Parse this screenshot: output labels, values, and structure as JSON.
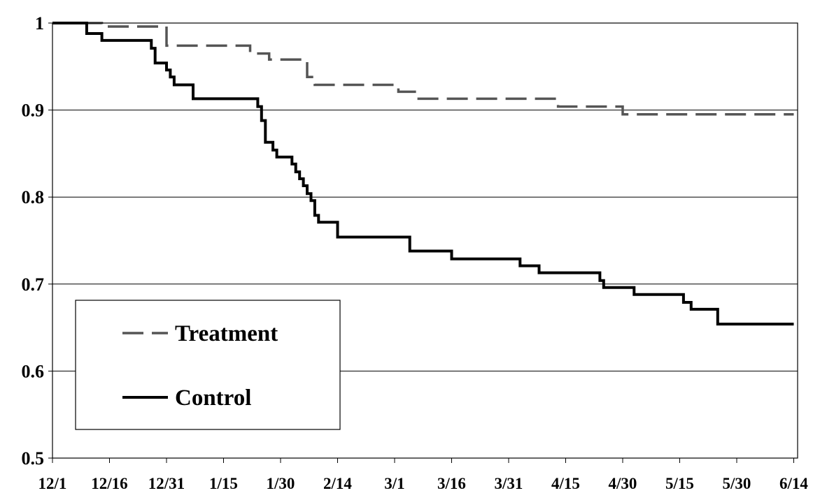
{
  "chart_data": {
    "type": "line",
    "title": "",
    "xlabel": "",
    "ylabel": "",
    "ylim": [
      0.5,
      1.0
    ],
    "y_ticks": [
      "0.5",
      "0.6",
      "0.7",
      "0.8",
      "0.9",
      "1"
    ],
    "x_ticks": [
      "12/1",
      "12/16",
      "12/31",
      "1/15",
      "1/30",
      "2/14",
      "3/1",
      "3/16",
      "3/31",
      "4/15",
      "4/30",
      "5/15",
      "5/30",
      "6/14"
    ],
    "grid": "horizontal",
    "legend_position": "lower-left",
    "series": [
      {
        "name": "Treatment",
        "style": "dashed",
        "color": "#555555",
        "steps": [
          [
            "12/1",
            1.0
          ],
          [
            "12/14",
            0.996
          ],
          [
            "12/31",
            0.974
          ],
          [
            "1/22",
            0.965
          ],
          [
            "1/27",
            0.958
          ],
          [
            "2/6",
            0.938
          ],
          [
            "2/8",
            0.929
          ],
          [
            "3/2",
            0.921
          ],
          [
            "3/7",
            0.913
          ],
          [
            "4/13",
            0.904
          ],
          [
            "4/30",
            0.895
          ],
          [
            "6/14",
            0.895
          ]
        ]
      },
      {
        "name": "Control",
        "style": "solid",
        "color": "#000000",
        "steps": [
          [
            "12/1",
            1.0
          ],
          [
            "12/10",
            0.988
          ],
          [
            "12/14",
            0.98
          ],
          [
            "12/27",
            0.971
          ],
          [
            "12/28",
            0.954
          ],
          [
            "12/31",
            0.946
          ],
          [
            "1/1",
            0.938
          ],
          [
            "1/2",
            0.929
          ],
          [
            "1/7",
            0.913
          ],
          [
            "1/24",
            0.904
          ],
          [
            "1/25",
            0.888
          ],
          [
            "1/26",
            0.863
          ],
          [
            "1/28",
            0.854
          ],
          [
            "1/29",
            0.846
          ],
          [
            "2/2",
            0.838
          ],
          [
            "2/3",
            0.829
          ],
          [
            "2/4",
            0.821
          ],
          [
            "2/5",
            0.813
          ],
          [
            "2/6",
            0.804
          ],
          [
            "2/7",
            0.796
          ],
          [
            "2/8",
            0.779
          ],
          [
            "2/9",
            0.771
          ],
          [
            "2/14",
            0.754
          ],
          [
            "3/5",
            0.738
          ],
          [
            "3/16",
            0.729
          ],
          [
            "4/3",
            0.721
          ],
          [
            "4/8",
            0.713
          ],
          [
            "4/24",
            0.704
          ],
          [
            "4/25",
            0.696
          ],
          [
            "5/3",
            0.688
          ],
          [
            "5/16",
            0.679
          ],
          [
            "5/18",
            0.671
          ],
          [
            "5/25",
            0.654
          ],
          [
            "6/14",
            0.654
          ]
        ]
      }
    ]
  }
}
